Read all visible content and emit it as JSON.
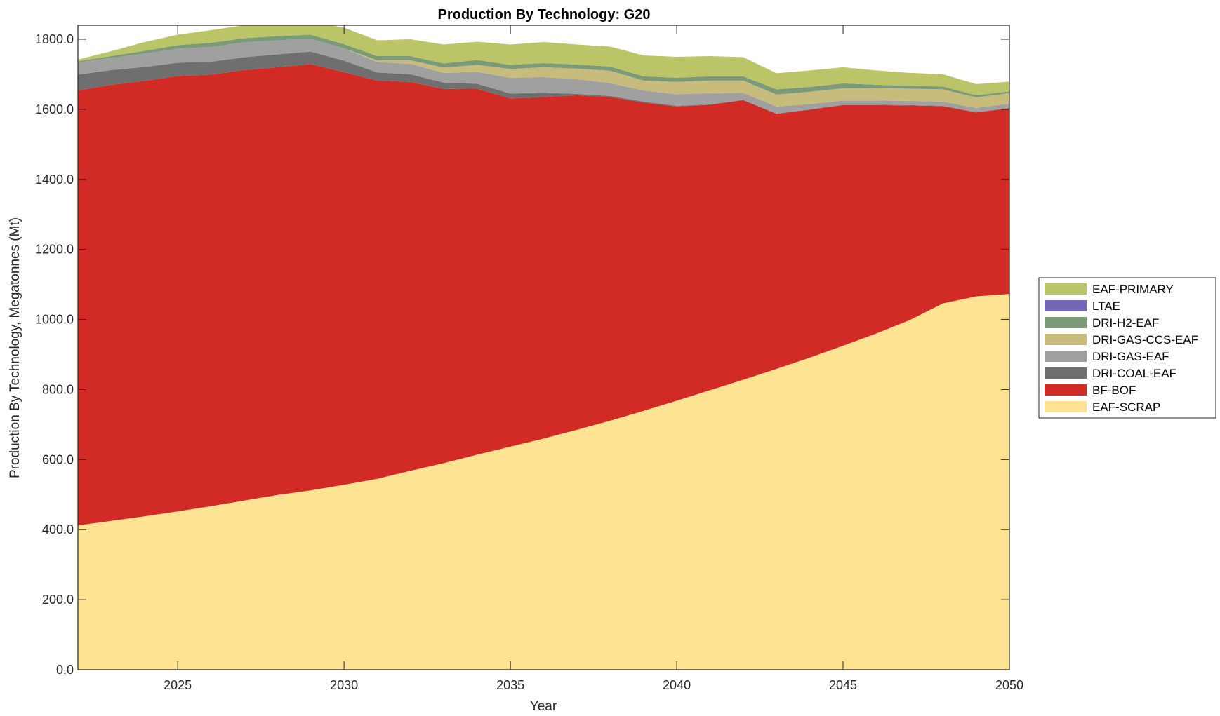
{
  "chart_data": {
    "type": "area",
    "title": "Production By Technology: G20",
    "xlabel": "Year",
    "ylabel": "Production By Technology, Megatonnes (Mt)",
    "xlim": [
      2022,
      2050
    ],
    "ylim": [
      0,
      1840
    ],
    "xticks": [
      "2025",
      "2030",
      "2035",
      "2040",
      "2045",
      "2050"
    ],
    "xtick_values": [
      2025,
      2030,
      2035,
      2040,
      2045,
      2050
    ],
    "yticks": [
      "0.0",
      "200.0",
      "400.0",
      "600.0",
      "800.0",
      "1000.0",
      "1200.0",
      "1400.0",
      "1600.0",
      "1800.0"
    ],
    "ytick_values": [
      0,
      200,
      400,
      600,
      800,
      1000,
      1200,
      1400,
      1600,
      1800
    ],
    "legend_position": "right",
    "grid": false,
    "x": [
      2022,
      2023,
      2024,
      2025,
      2026,
      2027,
      2028,
      2029,
      2030,
      2031,
      2032,
      2033,
      2034,
      2035,
      2036,
      2037,
      2038,
      2039,
      2040,
      2041,
      2042,
      2043,
      2044,
      2045,
      2046,
      2047,
      2048,
      2049,
      2050
    ],
    "series": [
      {
        "name": "EAF-SCRAP",
        "color": "#fde392",
        "values": [
          412,
          425,
          438,
          452,
          467,
          483,
          499,
          512,
          528,
          545,
          568,
          590,
          614,
          637,
          660,
          685,
          711,
          739,
          768,
          798,
          828,
          859,
          891,
          925,
          960,
          998,
          1046,
          1066,
          1073
        ]
      },
      {
        "name": "BF-BOF",
        "color": "#d22a24",
        "values": [
          1242,
          1245,
          1243,
          1243,
          1232,
          1229,
          1221,
          1217,
          1178,
          1137,
          1110,
          1068,
          1045,
          994,
          975,
          955,
          924,
          880,
          840,
          815,
          798,
          728,
          708,
          687,
          652,
          613,
          563,
          525,
          530
        ]
      },
      {
        "name": "DRI-COAL-EAF",
        "color": "#6f6f6f",
        "values": [
          45,
          42,
          40,
          38,
          37,
          37,
          37,
          36,
          33,
          23,
          22,
          18,
          14,
          14,
          12,
          4,
          3,
          3,
          2,
          1,
          1,
          1,
          1,
          1,
          1,
          1,
          1,
          1,
          1
        ]
      },
      {
        "name": "DRI-GAS-EAF",
        "color": "#a0a0a0",
        "values": [
          35,
          35,
          38,
          40,
          42,
          42,
          40,
          36,
          35,
          30,
          30,
          28,
          34,
          45,
          45,
          42,
          37,
          32,
          33,
          32,
          20,
          20,
          15,
          12,
          12,
          12,
          12,
          12,
          12
        ]
      },
      {
        "name": "DRI-GAS-CCS-EAF",
        "color": "#c8bc7c",
        "values": [
          0,
          0,
          0,
          0,
          0,
          0,
          0,
          0,
          0,
          5,
          10,
          15,
          20,
          25,
          28,
          30,
          35,
          28,
          35,
          36,
          35,
          34,
          35,
          35,
          35,
          35,
          35,
          30,
          30
        ]
      },
      {
        "name": "DRI-H2-EAF",
        "color": "#7a9a7a",
        "values": [
          3,
          5,
          8,
          10,
          12,
          12,
          12,
          12,
          12,
          12,
          12,
          12,
          14,
          12,
          12,
          12,
          12,
          12,
          12,
          12,
          12,
          15,
          14,
          14,
          10,
          8,
          8,
          6,
          5
        ]
      },
      {
        "name": "LTAE",
        "color": "#7468b6",
        "values": [
          0,
          0,
          0,
          0,
          0,
          0,
          0,
          0,
          0,
          0,
          0,
          0,
          0,
          0,
          0,
          0,
          0,
          0,
          0,
          0,
          0,
          0,
          0,
          0,
          0,
          0,
          0,
          0,
          0
        ]
      },
      {
        "name": "EAF-PRIMARY",
        "color": "#bcc468",
        "values": [
          5,
          14,
          25,
          30,
          36,
          37,
          36,
          37,
          47,
          45,
          48,
          54,
          52,
          58,
          60,
          57,
          57,
          60,
          60,
          58,
          55,
          46,
          47,
          46,
          41,
          37,
          35,
          32,
          28
        ]
      }
    ]
  }
}
